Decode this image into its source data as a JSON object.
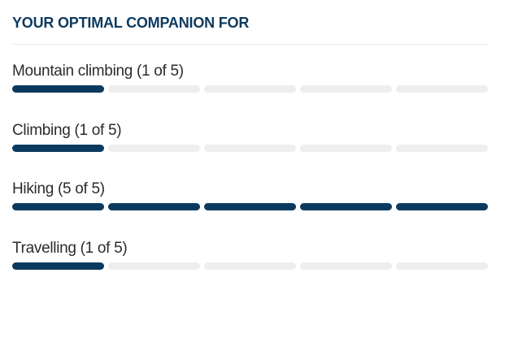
{
  "header": {
    "title": "YOUR OPTIMAL COMPANION FOR"
  },
  "items": [
    {
      "label": "Mountain climbing (1 of 5)",
      "rating": 1,
      "max": 5
    },
    {
      "label": "Climbing (1 of 5)",
      "rating": 1,
      "max": 5
    },
    {
      "label": "Hiking (5 of 5)",
      "rating": 5,
      "max": 5
    },
    {
      "label": "Travelling (1 of 5)",
      "rating": 1,
      "max": 5
    }
  ]
}
